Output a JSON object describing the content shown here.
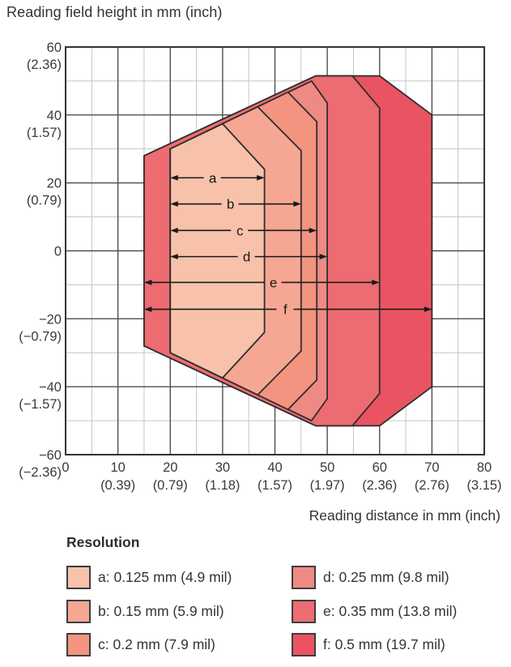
{
  "page_title": "Reading field height in mm (inch)",
  "legend": {
    "heading": "Resolution"
  },
  "chart_data": {
    "type": "area",
    "title": "Reading field height in mm (inch)",
    "xlabel": "Reading distance in mm (inch)",
    "ylabel": "Reading field height in mm (inch)",
    "xlim": [
      0,
      80
    ],
    "ylim": [
      -60,
      60
    ],
    "grid": {
      "on": true,
      "x_minor_step": 5,
      "x_major_step": 10,
      "y_minor_step": 10,
      "y_major_step": 20
    },
    "legend_position": "bottom",
    "x_ticks": [
      {
        "value": 0,
        "mm": "0",
        "inch": ""
      },
      {
        "value": 10,
        "mm": "10",
        "inch": "(0.39)"
      },
      {
        "value": 20,
        "mm": "20",
        "inch": "(0.79)"
      },
      {
        "value": 30,
        "mm": "30",
        "inch": "(1.18)"
      },
      {
        "value": 40,
        "mm": "40",
        "inch": "(1.57)"
      },
      {
        "value": 50,
        "mm": "50",
        "inch": "(1.97)"
      },
      {
        "value": 60,
        "mm": "60",
        "inch": "(2.36)"
      },
      {
        "value": 70,
        "mm": "70",
        "inch": "(2.76)"
      },
      {
        "value": 80,
        "mm": "80",
        "inch": "(3.15)"
      }
    ],
    "y_ticks": [
      {
        "value": 60,
        "mm": "60",
        "inch": "(2.36)"
      },
      {
        "value": 40,
        "mm": "40",
        "inch": "(1.57)"
      },
      {
        "value": 20,
        "mm": "20",
        "inch": "(0.79)"
      },
      {
        "value": 0,
        "mm": "0",
        "inch": ""
      },
      {
        "value": -20,
        "mm": "−20",
        "inch": "(−0.79)"
      },
      {
        "value": -40,
        "mm": "−40",
        "inch": "(−1.57)"
      },
      {
        "value": -60,
        "mm": "−60",
        "inch": "(−2.36)"
      }
    ],
    "series": [
      {
        "id": "a",
        "legend_label": "a: 0.125 mm (4.9 mil)",
        "resolution_mm": 0.125,
        "resolution_mil": 4.9,
        "color": "#f8c2aa",
        "reading_distance_mm": [
          20,
          38
        ],
        "vertices": [
          [
            20,
            30
          ],
          [
            30,
            37.4
          ],
          [
            38,
            24
          ],
          [
            38,
            -24
          ],
          [
            30,
            -37.4
          ],
          [
            20,
            -30
          ]
        ],
        "arrow": {
          "y": 21.5,
          "x1": 20,
          "x2": 38,
          "label_x": 28.1
        }
      },
      {
        "id": "b",
        "legend_label": "b: 0.15 mm (5.9 mil)",
        "resolution_mm": 0.15,
        "resolution_mil": 5.9,
        "color": "#f5a793",
        "reading_distance_mm": [
          20,
          45
        ],
        "vertices": [
          [
            20,
            30
          ],
          [
            36.7,
            42.4
          ],
          [
            45,
            29.5
          ],
          [
            45,
            -29.5
          ],
          [
            36.7,
            -42.4
          ],
          [
            20,
            -30
          ]
        ],
        "arrow": {
          "y": 13.8,
          "x1": 20,
          "x2": 45,
          "label_x": 31.5
        }
      },
      {
        "id": "c",
        "legend_label": "c: 0.2 mm (7.9 mil)",
        "resolution_mm": 0.2,
        "resolution_mil": 7.9,
        "color": "#f2947f",
        "reading_distance_mm": [
          20,
          48
        ],
        "vertices": [
          [
            20,
            30
          ],
          [
            42.5,
            46.7
          ],
          [
            48,
            38
          ],
          [
            48,
            -38
          ],
          [
            42.5,
            -46.7
          ],
          [
            20,
            -30
          ]
        ],
        "arrow": {
          "y": 6.0,
          "x1": 20,
          "x2": 48,
          "label_x": 33.3
        }
      },
      {
        "id": "d",
        "legend_label": "d: 0.25 mm (9.8 mil)",
        "resolution_mm": 0.25,
        "resolution_mil": 9.8,
        "color": "#ee8a84",
        "reading_distance_mm": [
          20,
          50
        ],
        "vertices": [
          [
            20,
            30
          ],
          [
            47,
            50
          ],
          [
            50,
            43.5
          ],
          [
            50,
            -43.5
          ],
          [
            47,
            -50
          ],
          [
            20,
            -30
          ]
        ],
        "arrow": {
          "y": -1.7,
          "x1": 20,
          "x2": 50,
          "label_x": 34.6
        }
      },
      {
        "id": "e",
        "legend_label": "e: 0.35 mm (13.8 mil)",
        "resolution_mm": 0.35,
        "resolution_mil": 13.8,
        "color": "#ed6c71",
        "reading_distance_mm": [
          15,
          60
        ],
        "vertices": [
          [
            15,
            28
          ],
          [
            47.8,
            51.5
          ],
          [
            54.8,
            51.5
          ],
          [
            60,
            42
          ],
          [
            60,
            -42
          ],
          [
            54.8,
            -51.5
          ],
          [
            47.8,
            -51.5
          ],
          [
            15,
            -28
          ]
        ],
        "arrow": {
          "y": -9.3,
          "x1": 15,
          "x2": 60,
          "label_x": 39.7
        }
      },
      {
        "id": "f",
        "legend_label": "f: 0.5 mm (19.7 mil)",
        "resolution_mm": 0.5,
        "resolution_mil": 19.7,
        "color": "#ea5462",
        "reading_distance_mm": [
          15,
          70
        ],
        "vertices": [
          [
            15,
            28
          ],
          [
            47.8,
            51.5
          ],
          [
            60,
            51.5
          ],
          [
            70,
            40
          ],
          [
            70,
            -40
          ],
          [
            60,
            -51.5
          ],
          [
            47.8,
            -51.5
          ],
          [
            15,
            -28
          ]
        ],
        "arrow": {
          "y": -17.2,
          "x1": 15,
          "x2": 70,
          "label_x": 42.0
        }
      }
    ]
  }
}
